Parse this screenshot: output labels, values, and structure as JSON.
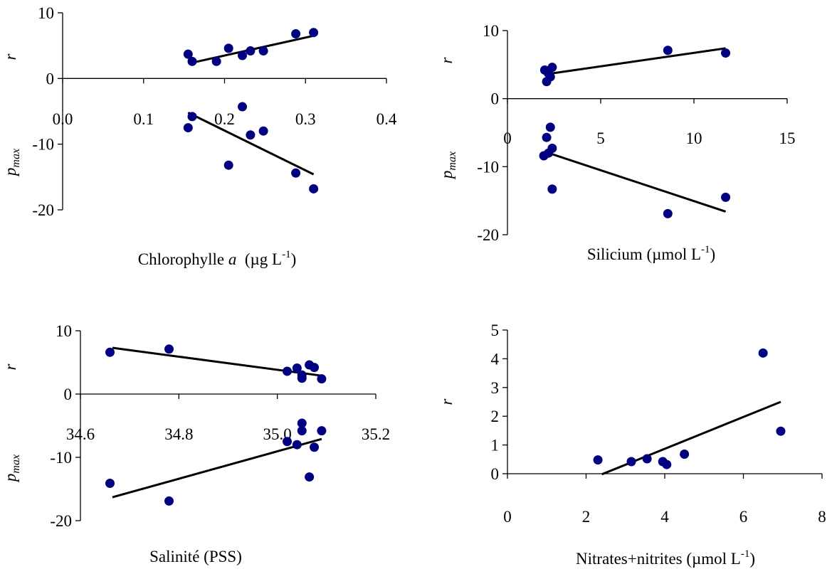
{
  "chart_data": [
    {
      "type": "scatter",
      "xlabel": "Chlorophylle ",
      "xlabel_italic": "a",
      "xlabel_unit": "(µg L",
      "xlabel_sup": "-1",
      "xlabel_close": ")",
      "ylabels": [
        "r",
        "p",
        "max"
      ],
      "xlim": [
        0.0,
        0.4
      ],
      "ylim": [
        -20,
        10
      ],
      "xticks": [
        0.0,
        0.1,
        0.2,
        0.3,
        0.4
      ],
      "xtick_labels": [
        "0.0",
        "0.1",
        "0.2",
        "0.3",
        "0.4"
      ],
      "yticks": [
        10,
        0,
        -10,
        -20
      ],
      "ytick_labels": [
        "10",
        "0",
        "-10",
        "-20"
      ],
      "series": [
        {
          "points": [
            [
              0.155,
              3.7
            ],
            [
              0.16,
              2.6
            ],
            [
              0.19,
              2.6
            ],
            [
              0.205,
              4.6
            ],
            [
              0.222,
              3.5
            ],
            [
              0.232,
              4.2
            ],
            [
              0.248,
              4.2
            ],
            [
              0.288,
              6.8
            ],
            [
              0.31,
              7.0
            ]
          ],
          "trend": [
            [
              0.16,
              2.4
            ],
            [
              0.31,
              6.5
            ]
          ]
        },
        {
          "points": [
            [
              0.155,
              -7.5
            ],
            [
              0.16,
              -5.8
            ],
            [
              0.205,
              -13.2
            ],
            [
              0.222,
              -4.3
            ],
            [
              0.232,
              -8.6
            ],
            [
              0.248,
              -8.0
            ],
            [
              0.288,
              -14.4
            ],
            [
              0.31,
              -16.8
            ]
          ],
          "trend": [
            [
              0.155,
              -5.2
            ],
            [
              0.31,
              -14.6
            ]
          ]
        }
      ]
    },
    {
      "type": "scatter",
      "xlabel": "Silicium (µmol L",
      "xlabel_sup": "-1",
      "xlabel_close": ")",
      "ylabels": [
        "r",
        "p",
        "max"
      ],
      "xlim": [
        0,
        15
      ],
      "ylim": [
        -20,
        10
      ],
      "xticks": [
        0,
        5,
        10,
        15
      ],
      "xtick_labels": [
        "0",
        "5",
        "10",
        "15"
      ],
      "yticks": [
        10,
        0,
        -10,
        -20
      ],
      "ytick_labels": [
        "10",
        "0",
        "-10",
        "-20"
      ],
      "series": [
        {
          "points": [
            [
              2.0,
              4.2
            ],
            [
              2.4,
              4.6
            ],
            [
              2.2,
              3.7
            ],
            [
              2.3,
              3.2
            ],
            [
              2.1,
              2.5
            ],
            [
              8.6,
              7.1
            ],
            [
              11.7,
              6.7
            ]
          ],
          "trend": [
            [
              2.1,
              3.6
            ],
            [
              11.7,
              7.4
            ]
          ]
        },
        {
          "points": [
            [
              2.3,
              -4.2
            ],
            [
              2.1,
              -5.7
            ],
            [
              2.4,
              -7.3
            ],
            [
              2.2,
              -8.0
            ],
            [
              1.95,
              -8.4
            ],
            [
              2.4,
              -13.3
            ],
            [
              8.6,
              -16.9
            ],
            [
              11.7,
              -14.5
            ]
          ],
          "trend": [
            [
              2.0,
              -7.8
            ],
            [
              11.7,
              -16.6
            ]
          ]
        }
      ]
    },
    {
      "type": "scatter",
      "xlabel": "Salinité (PSS)",
      "ylabels": [
        "r",
        "p",
        "max"
      ],
      "xlim": [
        34.6,
        35.2
      ],
      "ylim": [
        -20,
        10
      ],
      "xticks": [
        34.6,
        34.8,
        35.0,
        35.2
      ],
      "xtick_labels": [
        "34.6",
        "34.8",
        "35.0",
        "35.2"
      ],
      "yticks": [
        10,
        0,
        -10,
        -20
      ],
      "ytick_labels": [
        "10",
        "0",
        "-10",
        "-20"
      ],
      "series": [
        {
          "points": [
            [
              34.66,
              6.6
            ],
            [
              34.78,
              7.1
            ],
            [
              35.02,
              3.6
            ],
            [
              35.04,
              4.1
            ],
            [
              35.05,
              3.0
            ],
            [
              35.05,
              2.5
            ],
            [
              35.065,
              4.6
            ],
            [
              35.075,
              4.2
            ],
            [
              35.09,
              2.4
            ]
          ],
          "trend": [
            [
              34.665,
              7.3
            ],
            [
              35.09,
              2.9
            ]
          ]
        },
        {
          "points": [
            [
              34.66,
              -14.1
            ],
            [
              34.78,
              -16.9
            ],
            [
              35.02,
              -7.5
            ],
            [
              35.04,
              -8.0
            ],
            [
              35.05,
              -5.8
            ],
            [
              35.05,
              -4.6
            ],
            [
              35.065,
              -13.1
            ],
            [
              35.075,
              -8.4
            ],
            [
              35.09,
              -5.8
            ]
          ],
          "trend": [
            [
              34.665,
              -16.3
            ],
            [
              35.09,
              -7.1
            ]
          ]
        }
      ]
    },
    {
      "type": "scatter",
      "xlabel": "Nitrates+nitrites (µmol L",
      "xlabel_sup": "-1",
      "xlabel_close": ")",
      "ylabels": [
        "r"
      ],
      "xlim": [
        0,
        8
      ],
      "ylim": [
        0,
        5
      ],
      "xticks": [
        0,
        2,
        4,
        6,
        8
      ],
      "xtick_labels": [
        "0",
        "2",
        "4",
        "6",
        "8"
      ],
      "yticks": [
        0,
        1,
        2,
        3,
        4,
        5
      ],
      "ytick_labels": [
        "0",
        "1",
        "2",
        "3",
        "4",
        "5"
      ],
      "series": [
        {
          "points": [
            [
              2.3,
              0.48
            ],
            [
              3.15,
              0.42
            ],
            [
              3.55,
              0.52
            ],
            [
              3.95,
              0.42
            ],
            [
              4.05,
              0.32
            ],
            [
              4.5,
              0.68
            ],
            [
              6.5,
              4.2
            ],
            [
              6.95,
              1.48
            ]
          ],
          "trend": [
            [
              2.4,
              -0.02
            ],
            [
              6.95,
              2.5
            ]
          ]
        }
      ]
    }
  ]
}
